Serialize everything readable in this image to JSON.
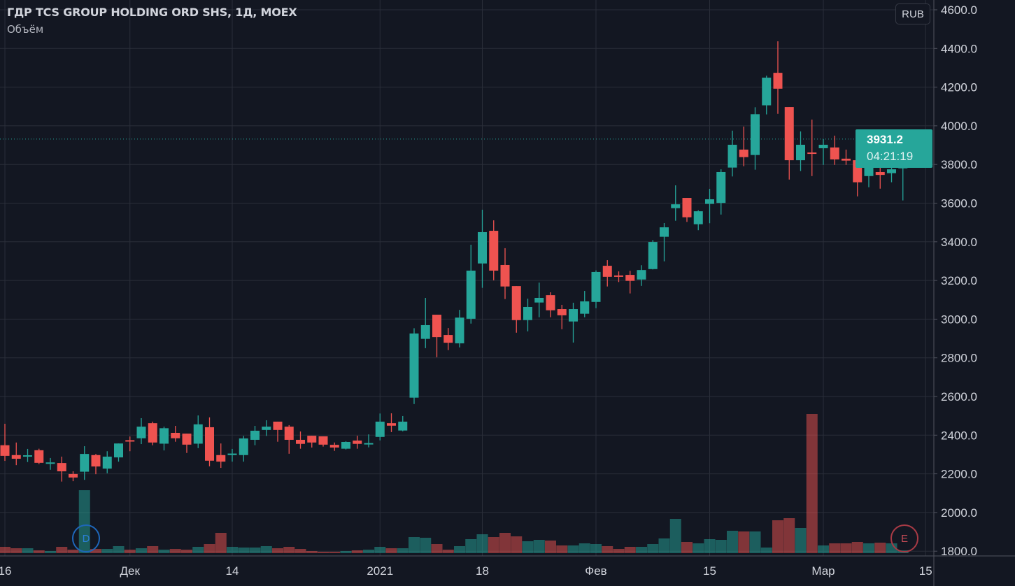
{
  "header": {
    "title": "ГДР TCS GROUP HOLDING ORD SHS, 1Д, MOEX",
    "indicator": "Объём"
  },
  "currency_button": "RUB",
  "last_price": {
    "price": "3931.2",
    "countdown": "04:21:19"
  },
  "markers": {
    "dividend": "D",
    "earnings": "E"
  },
  "colors": {
    "bg": "#131722",
    "grid": "#2a2e39",
    "up": "#26a69a",
    "down": "#ef5350",
    "text": "#d1d4dc"
  },
  "chart_data": {
    "type": "candlestick",
    "title": "ГДР TCS GROUP HOLDING ORD SHS, 1Д, MOEX",
    "ylabel": "RUB",
    "ylim": [
      1800,
      4600
    ],
    "yticks": [
      "4600.0",
      "4400.0",
      "4200.0",
      "4000.0",
      "3800.0",
      "3600.0",
      "3400.0",
      "3200.0",
      "3000.0",
      "2800.0",
      "2600.0",
      "2400.0",
      "2200.0",
      "2000.0",
      "1800.0"
    ],
    "xticks": [
      {
        "index": 0,
        "label": "16"
      },
      {
        "index": 11,
        "label": "Дек"
      },
      {
        "index": 20,
        "label": "14"
      },
      {
        "index": 33,
        "label": "2021"
      },
      {
        "index": 42,
        "label": "18"
      },
      {
        "index": 52,
        "label": "Фев"
      },
      {
        "index": 62,
        "label": "15"
      },
      {
        "index": 72,
        "label": "Мар"
      },
      {
        "index": 81,
        "label": "15"
      }
    ],
    "candle_fields": [
      "open",
      "high",
      "low",
      "close",
      "volume_relative"
    ],
    "candles": [
      [
        2348,
        2459,
        2267,
        2293,
        9
      ],
      [
        2297,
        2362,
        2245,
        2278,
        7
      ],
      [
        2292,
        2329,
        2261,
        2296,
        7
      ],
      [
        2322,
        2330,
        2250,
        2257,
        4
      ],
      [
        2255,
        2282,
        2221,
        2259,
        3
      ],
      [
        2256,
        2289,
        2160,
        2213,
        9
      ],
      [
        2199,
        2213,
        2162,
        2181,
        5
      ],
      [
        2211,
        2343,
        2169,
        2303,
        90
      ],
      [
        2297,
        2303,
        2198,
        2238,
        6
      ],
      [
        2227,
        2317,
        2203,
        2289,
        6
      ],
      [
        2285,
        2357,
        2263,
        2357,
        10
      ],
      [
        2374,
        2393,
        2317,
        2368,
        5
      ],
      [
        2384,
        2488,
        2354,
        2444,
        7
      ],
      [
        2462,
        2470,
        2348,
        2362,
        10
      ],
      [
        2356,
        2444,
        2321,
        2436,
        5
      ],
      [
        2412,
        2448,
        2366,
        2384,
        6
      ],
      [
        2408,
        2408,
        2308,
        2351,
        5
      ],
      [
        2356,
        2502,
        2333,
        2456,
        9
      ],
      [
        2441,
        2492,
        2239,
        2268,
        13
      ],
      [
        2297,
        2357,
        2231,
        2263,
        29
      ],
      [
        2297,
        2329,
        2263,
        2305,
        9
      ],
      [
        2297,
        2396,
        2263,
        2383,
        8
      ],
      [
        2376,
        2448,
        2348,
        2423,
        8
      ],
      [
        2427,
        2477,
        2396,
        2444,
        10
      ],
      [
        2470,
        2470,
        2366,
        2427,
        7
      ],
      [
        2444,
        2452,
        2304,
        2376,
        9
      ],
      [
        2376,
        2419,
        2330,
        2355,
        6
      ],
      [
        2397,
        2397,
        2336,
        2362,
        3
      ],
      [
        2394,
        2394,
        2341,
        2351,
        2
      ],
      [
        2350,
        2362,
        2319,
        2336,
        2
      ],
      [
        2330,
        2368,
        2326,
        2365,
        3
      ],
      [
        2372,
        2397,
        2330,
        2355,
        4
      ],
      [
        2354,
        2404,
        2337,
        2359,
        5
      ],
      [
        2391,
        2512,
        2373,
        2470,
        9
      ],
      [
        2462,
        2513,
        2416,
        2449,
        7
      ],
      [
        2424,
        2499,
        2420,
        2470,
        7
      ],
      [
        2594,
        2953,
        2561,
        2926,
        23
      ],
      [
        2898,
        3110,
        2850,
        2969,
        22
      ],
      [
        3023,
        3023,
        2803,
        2907,
        13
      ],
      [
        2918,
        2954,
        2840,
        2878,
        5
      ],
      [
        2875,
        3048,
        2854,
        3008,
        10
      ],
      [
        3002,
        3385,
        2977,
        3251,
        20
      ],
      [
        3288,
        3566,
        3162,
        3450,
        27
      ],
      [
        3457,
        3511,
        3201,
        3251,
        23
      ],
      [
        3280,
        3367,
        3104,
        3169,
        29
      ],
      [
        3171,
        3171,
        2930,
        2995,
        24
      ],
      [
        2995,
        3106,
        2937,
        3063,
        17
      ],
      [
        3086,
        3189,
        3010,
        3110,
        19
      ],
      [
        3124,
        3139,
        3010,
        3046,
        18
      ],
      [
        3052,
        3074,
        2948,
        3020,
        11
      ],
      [
        2988,
        3085,
        2879,
        3052,
        11
      ],
      [
        3028,
        3146,
        3010,
        3092,
        14
      ],
      [
        3089,
        3252,
        3057,
        3244,
        13
      ],
      [
        3276,
        3305,
        3169,
        3219,
        10
      ],
      [
        3226,
        3247,
        3192,
        3220,
        6
      ],
      [
        3229,
        3250,
        3133,
        3198,
        9
      ],
      [
        3205,
        3279,
        3172,
        3254,
        9
      ],
      [
        3259,
        3409,
        3257,
        3399,
        13
      ],
      [
        3426,
        3497,
        3299,
        3475,
        21
      ],
      [
        3574,
        3692,
        3509,
        3594,
        49
      ],
      [
        3627,
        3627,
        3503,
        3527,
        16
      ],
      [
        3491,
        3563,
        3460,
        3558,
        14
      ],
      [
        3596,
        3674,
        3496,
        3620,
        20
      ],
      [
        3601,
        3775,
        3541,
        3761,
        19
      ],
      [
        3784,
        3975,
        3738,
        3902,
        32
      ],
      [
        3877,
        3996,
        3791,
        3838,
        31
      ],
      [
        3849,
        4096,
        3773,
        4060,
        31
      ],
      [
        4106,
        4259,
        4059,
        4249,
        8
      ],
      [
        4274,
        4437,
        4062,
        4192,
        47
      ],
      [
        4097,
        4097,
        3722,
        3822,
        50
      ],
      [
        3822,
        3971,
        3766,
        3902,
        36
      ],
      [
        3862,
        4032,
        3740,
        3856,
        199
      ],
      [
        3884,
        3931,
        3798,
        3902,
        11
      ],
      [
        3888,
        3949,
        3798,
        3826,
        14
      ],
      [
        3830,
        3877,
        3798,
        3820,
        14
      ],
      [
        3822,
        3848,
        3635,
        3708,
        16
      ],
      [
        3740,
        3913,
        3682,
        3804,
        14
      ],
      [
        3761,
        3859,
        3675,
        3746,
        15
      ],
      [
        3755,
        3880,
        3708,
        3775,
        14
      ],
      [
        3780,
        3945,
        3614,
        3931.2,
        4
      ]
    ],
    "dividend_marker_index": 7,
    "earnings_marker_index": 79,
    "grid": true
  }
}
